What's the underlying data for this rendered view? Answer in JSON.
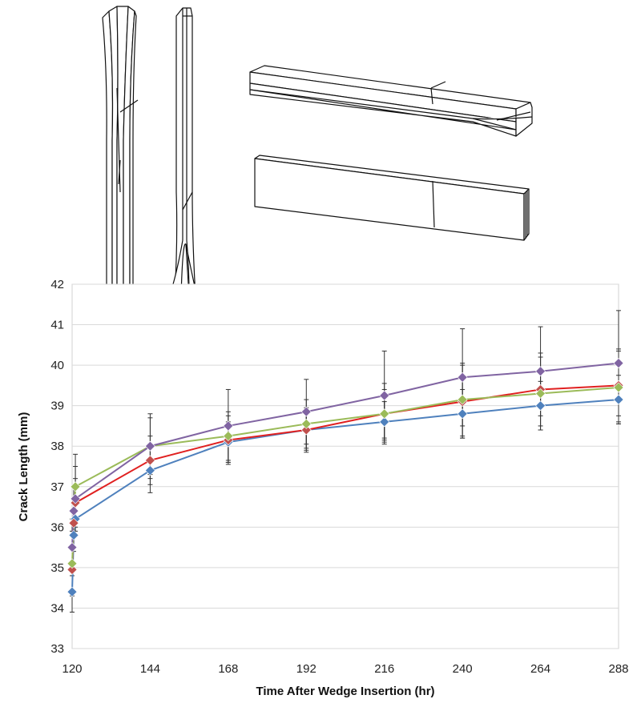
{
  "chart_data": {
    "type": "line",
    "title": "",
    "xlabel": "Time After Wedge Insertion (hr)",
    "ylabel": "Crack Length (mm)",
    "xlim": [
      120,
      288
    ],
    "ylim": [
      33,
      42
    ],
    "xticks": [
      "120",
      "144",
      "168",
      "192",
      "216",
      "240",
      "264",
      "288"
    ],
    "yticks": [
      "33",
      "34",
      "35",
      "36",
      "37",
      "38",
      "39",
      "40",
      "41",
      "42"
    ],
    "grid": "horizontal",
    "legend": "none",
    "series": [
      {
        "color": "#4f81bd",
        "points": [
          [
            120,
            34.4
          ],
          [
            120.5,
            35.8
          ],
          [
            121,
            36.2
          ],
          [
            144,
            37.4
          ],
          [
            168,
            38.1
          ],
          [
            192,
            38.4
          ],
          [
            216,
            38.6
          ],
          [
            240,
            38.8
          ],
          [
            264,
            39.0
          ],
          [
            288,
            39.15
          ]
        ],
        "error": [
          0.5,
          0.4,
          0.4,
          0.55,
          0.5,
          0.5,
          0.5,
          0.6,
          0.6,
          0.6
        ]
      },
      {
        "color": "#c0504d",
        "points": [
          [
            120,
            34.95
          ],
          [
            120.5,
            36.1
          ],
          [
            121,
            36.6
          ],
          [
            144,
            37.65
          ],
          [
            168,
            38.15
          ],
          [
            192,
            38.4
          ],
          [
            216,
            38.8
          ],
          [
            240,
            39.1
          ],
          [
            264,
            39.4
          ],
          [
            288,
            39.5
          ]
        ],
        "error": [
          0.6,
          0.6,
          0.6,
          0.6,
          0.6,
          0.55,
          0.75,
          0.9,
          0.9,
          0.9
        ]
      },
      {
        "color": "#9bbb59",
        "points": [
          [
            120,
            35.1
          ],
          [
            121,
            37.0
          ],
          [
            144,
            38.0
          ],
          [
            168,
            38.25
          ],
          [
            192,
            38.55
          ],
          [
            216,
            38.8
          ],
          [
            240,
            39.15
          ],
          [
            264,
            39.3
          ],
          [
            288,
            39.45
          ]
        ],
        "error": [
          0.8,
          0.8,
          0.7,
          0.6,
          0.6,
          0.6,
          0.9,
          0.9,
          0.9
        ]
      },
      {
        "color": "#8064a2",
        "points": [
          [
            120,
            35.5
          ],
          [
            120.5,
            36.4
          ],
          [
            121,
            36.7
          ],
          [
            144,
            38.0
          ],
          [
            168,
            38.5
          ],
          [
            192,
            38.85
          ],
          [
            216,
            39.25
          ],
          [
            240,
            39.7
          ],
          [
            264,
            39.85
          ],
          [
            288,
            40.05
          ]
        ],
        "error": [
          0.7,
          0.6,
          0.8,
          0.8,
          0.9,
          0.8,
          1.1,
          1.2,
          1.1,
          1.3
        ]
      }
    ]
  },
  "illustration": {
    "line_color": "#111111"
  }
}
